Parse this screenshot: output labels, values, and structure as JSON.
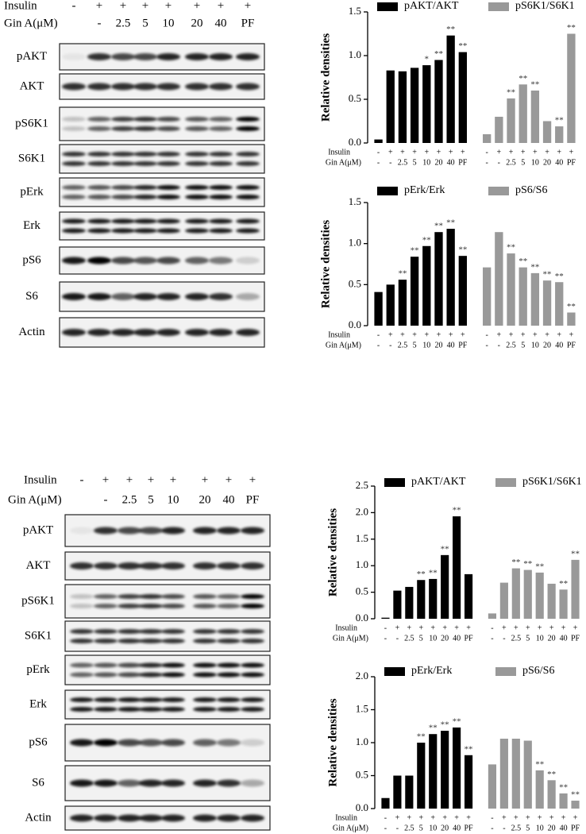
{
  "blots": [
    {
      "treatment_labels": [
        "Insulin",
        "Gin A(μM)"
      ],
      "insulin": [
        "-",
        "+",
        "+",
        "+",
        "+",
        "+",
        "+",
        "+"
      ],
      "gin_a": [
        null,
        "-",
        "2.5",
        "5",
        "10",
        "20",
        "40",
        "PF"
      ],
      "proteins": [
        "pAKT",
        "AKT",
        "pS6K1",
        "S6K1",
        "pErk",
        "Erk",
        "pS6",
        "S6",
        "Actin"
      ]
    },
    {
      "treatment_labels": [
        "Insulin",
        "Gin A(μM)"
      ],
      "insulin": [
        "-",
        "+",
        "+",
        "+",
        "+",
        "+",
        "+",
        "+"
      ],
      "gin_a": [
        null,
        "-",
        "2.5",
        "5",
        "10",
        "20",
        "40",
        "PF"
      ],
      "proteins": [
        "pAKT",
        "AKT",
        "pS6K1",
        "S6K1",
        "pErk",
        "Erk",
        "pS6",
        "S6",
        "Actin"
      ]
    }
  ],
  "chart_data": [
    {
      "type": "bar",
      "y_label": "Relative densities",
      "row_labels": [
        "Insulin",
        "Gin A(μM)"
      ],
      "insulin": [
        "-",
        "+",
        "+",
        "+",
        "+",
        "+",
        "+",
        "+"
      ],
      "categories": [
        "-",
        "-",
        "2.5",
        "5",
        "10",
        "20",
        "40",
        "PF"
      ],
      "ylim": [
        0,
        1.5
      ],
      "yticks": [
        {
          "value": 0,
          "label": "0.0"
        },
        {
          "value": 0.5,
          "label": "0.5"
        },
        {
          "value": 1,
          "label": "1.0"
        },
        {
          "value": 1.5,
          "label": "1.5"
        }
      ],
      "series": [
        {
          "name": "pAKT/AKT",
          "color": "#000000",
          "values": [
            0.04,
            0.83,
            0.82,
            0.86,
            0.89,
            0.95,
            1.23,
            1.04
          ],
          "annotations": [
            null,
            null,
            null,
            null,
            "*",
            "**",
            "**",
            "**"
          ]
        },
        {
          "name": "pS6K1/S6K1",
          "color": "#999999",
          "values": [
            0.1,
            0.3,
            0.51,
            0.67,
            0.6,
            0.25,
            0.19,
            1.25
          ],
          "annotations": [
            null,
            null,
            "**",
            "**",
            "**",
            null,
            "**",
            "**"
          ]
        }
      ]
    },
    {
      "type": "bar",
      "y_label": "Relative densities",
      "row_labels": [
        "Insulin",
        "Gin A(μM)"
      ],
      "insulin": [
        "-",
        "+",
        "+",
        "+",
        "+",
        "+",
        "+",
        "+"
      ],
      "categories": [
        "-",
        "-",
        "2.5",
        "5",
        "10",
        "20",
        "40",
        "PF"
      ],
      "ylim": [
        0,
        1.5
      ],
      "yticks": [
        {
          "value": 0,
          "label": "0.0"
        },
        {
          "value": 0.5,
          "label": "0.5"
        },
        {
          "value": 1,
          "label": "1.0"
        },
        {
          "value": 1.5,
          "label": "1.5"
        }
      ],
      "series": [
        {
          "name": "pErk/Erk",
          "color": "#000000",
          "values": [
            0.41,
            0.5,
            0.56,
            0.84,
            0.97,
            1.14,
            1.18,
            0.85
          ],
          "annotations": [
            null,
            null,
            "**",
            "**",
            "**",
            "**",
            "**",
            "**"
          ]
        },
        {
          "name": "pS6/S6",
          "color": "#999999",
          "values": [
            0.71,
            1.14,
            0.88,
            0.71,
            0.64,
            0.55,
            0.53,
            0.16
          ],
          "annotations": [
            null,
            null,
            "**",
            "**",
            "**",
            "**",
            "**",
            "**"
          ]
        }
      ]
    },
    {
      "type": "bar",
      "y_label": "Relative densities",
      "row_labels": [
        "Insulin",
        "Gin A(μM)"
      ],
      "insulin": [
        "-",
        "+",
        "+",
        "+",
        "+",
        "+",
        "+",
        "+"
      ],
      "categories": [
        "-",
        "-",
        "2.5",
        "5",
        "10",
        "20",
        "40",
        "PF"
      ],
      "ylim": [
        0,
        2.5
      ],
      "yticks": [
        {
          "value": 0,
          "label": "0.0"
        },
        {
          "value": 0.5,
          "label": "0.5"
        },
        {
          "value": 1,
          "label": "1.0"
        },
        {
          "value": 1.5,
          "label": "1.5"
        },
        {
          "value": 2,
          "label": "2.0"
        },
        {
          "value": 2.5,
          "label": "2.5"
        }
      ],
      "series": [
        {
          "name": "pAKT/AKT",
          "color": "#000000",
          "values": [
            0.02,
            0.53,
            0.6,
            0.73,
            0.75,
            1.2,
            1.93,
            0.84
          ],
          "annotations": [
            null,
            null,
            null,
            "**",
            "**",
            "**",
            "**",
            null
          ]
        },
        {
          "name": "pS6K1/S6K1",
          "color": "#999999",
          "values": [
            0.1,
            0.68,
            0.95,
            0.92,
            0.87,
            0.66,
            0.55,
            1.11
          ],
          "annotations": [
            null,
            null,
            "**",
            "**",
            "**",
            null,
            "**",
            "**"
          ]
        }
      ]
    },
    {
      "type": "bar",
      "y_label": "Relative densities",
      "row_labels": [
        "Insulin",
        "Gin A(μM)"
      ],
      "insulin": [
        "-",
        "+",
        "+",
        "+",
        "+",
        "+",
        "+",
        "+"
      ],
      "categories": [
        "-",
        "-",
        "2.5",
        "5",
        "10",
        "20",
        "40",
        "PF"
      ],
      "ylim": [
        0,
        2
      ],
      "yticks": [
        {
          "value": 0,
          "label": "0.0"
        },
        {
          "value": 0.5,
          "label": "0.5"
        },
        {
          "value": 1,
          "label": "1.0"
        },
        {
          "value": 1.5,
          "label": "1.5"
        },
        {
          "value": 2,
          "label": "2.0"
        }
      ],
      "series": [
        {
          "name": "pErk/Erk",
          "color": "#000000",
          "values": [
            0.16,
            0.5,
            0.5,
            1.0,
            1.13,
            1.18,
            1.23,
            0.81
          ],
          "annotations": [
            null,
            null,
            null,
            "**",
            "**",
            "**",
            "**",
            "**"
          ]
        },
        {
          "name": "pS6/S6",
          "color": "#999999",
          "values": [
            0.67,
            1.06,
            1.06,
            1.03,
            0.58,
            0.43,
            0.23,
            0.12
          ],
          "annotations": [
            null,
            null,
            null,
            null,
            "**",
            "**",
            "**",
            "**"
          ]
        }
      ]
    }
  ]
}
